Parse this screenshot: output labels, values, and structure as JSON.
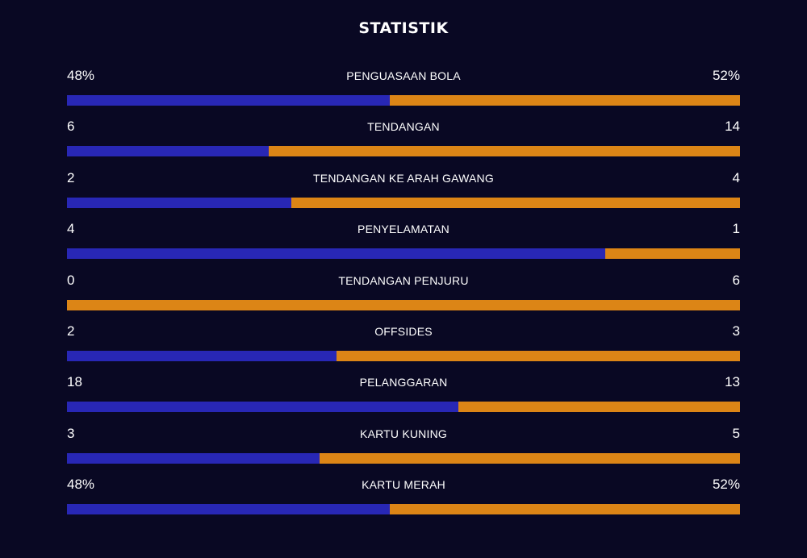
{
  "header": {
    "title": "STATISTIK"
  },
  "colors": {
    "background": "#090823",
    "home": "#2827b5",
    "away": "#dc8516",
    "text": "#ffffff"
  },
  "stats": [
    {
      "label": "PENGUASAAN BOLA",
      "home": "48%",
      "away": "52%",
      "home_share": 0.48
    },
    {
      "label": "TENDANGAN",
      "home": "6",
      "away": "14",
      "home_share": 0.3
    },
    {
      "label": "TENDANGAN KE ARAH GAWANG",
      "home": "2",
      "away": "4",
      "home_share": 0.333
    },
    {
      "label": "PENYELAMATAN",
      "home": "4",
      "away": "1",
      "home_share": 0.8
    },
    {
      "label": "TENDANGAN PENJURU",
      "home": "0",
      "away": "6",
      "home_share": 0.0
    },
    {
      "label": "OFFSIDES",
      "home": "2",
      "away": "3",
      "home_share": 0.4
    },
    {
      "label": "PELANGGARAN",
      "home": "18",
      "away": "13",
      "home_share": 0.581
    },
    {
      "label": "KARTU KUNING",
      "home": "3",
      "away": "5",
      "home_share": 0.375
    },
    {
      "label": "KARTU MERAH",
      "home": "48%",
      "away": "52%",
      "home_share": 0.48
    }
  ]
}
